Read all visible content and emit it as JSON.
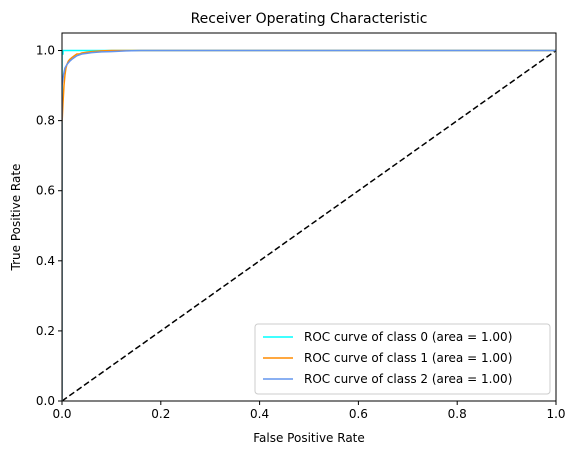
{
  "chart_data": {
    "type": "line",
    "title": "Receiver Operating Characteristic",
    "xlabel": "False Positive Rate",
    "ylabel": "True Positive Rate",
    "xlim": [
      0.0,
      1.0
    ],
    "ylim": [
      0.0,
      1.05
    ],
    "xticks": [
      "0.0",
      "0.2",
      "0.4",
      "0.6",
      "0.8",
      "1.0"
    ],
    "yticks": [
      "0.0",
      "0.2",
      "0.4",
      "0.6",
      "0.8",
      "1.0"
    ],
    "xtick_values": [
      0.0,
      0.2,
      0.4,
      0.6,
      0.8,
      1.0
    ],
    "ytick_values": [
      0.0,
      0.2,
      0.4,
      0.6,
      0.8,
      1.0
    ],
    "grid": false,
    "legend_position": "lower right",
    "series": [
      {
        "name": "ROC curve of class 0 (area = 1.00)",
        "color": "#00ffff",
        "x": [
          0.0,
          0.0,
          0.002,
          0.002,
          1.0
        ],
        "y": [
          0.0,
          0.99,
          0.99,
          1.0,
          1.0
        ]
      },
      {
        "name": "ROC curve of class 1 (area = 1.00)",
        "color": "#ff8c00",
        "x": [
          0.0,
          0.0,
          0.002,
          0.004,
          0.006,
          0.008,
          0.01,
          0.013,
          0.016,
          0.02,
          0.025,
          0.03,
          0.035,
          0.04,
          0.05,
          0.06,
          0.08,
          0.1,
          1.0
        ],
        "y": [
          0.0,
          0.79,
          0.85,
          0.9,
          0.93,
          0.95,
          0.96,
          0.97,
          0.975,
          0.98,
          0.985,
          0.99,
          0.99,
          0.993,
          0.995,
          0.997,
          0.999,
          1.0,
          1.0
        ]
      },
      {
        "name": "ROC curve of class 2 (area = 1.00)",
        "color": "#6495ed",
        "x": [
          0.0,
          0.0,
          0.003,
          0.006,
          0.01,
          0.013,
          0.016,
          0.02,
          0.025,
          0.03,
          0.04,
          0.05,
          0.06,
          0.08,
          0.1,
          0.13,
          0.16,
          1.0
        ],
        "y": [
          0.0,
          0.9,
          0.93,
          0.95,
          0.96,
          0.965,
          0.97,
          0.975,
          0.98,
          0.985,
          0.99,
          0.992,
          0.994,
          0.996,
          0.997,
          0.999,
          1.0,
          1.0
        ]
      }
    ],
    "reference_line": {
      "color": "#000000",
      "style": "dashed",
      "x": [
        0.0,
        1.0
      ],
      "y": [
        0.0,
        1.0
      ]
    }
  }
}
